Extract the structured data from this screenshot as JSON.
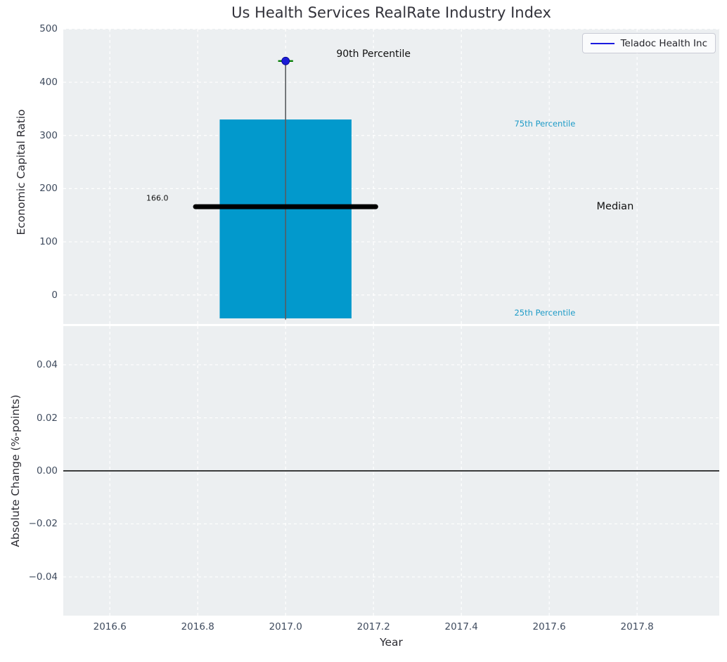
{
  "title": "Us Health Services RealRate Industry Index",
  "legend": {
    "label": "Teladoc Health Inc",
    "line_color": "#1a1ae0"
  },
  "colors": {
    "figure_background": "#ffffff",
    "axes_background": "#eceff1",
    "gridline": "#ffffff",
    "tick_text": "#3f4b5e",
    "bar": "#0299cc",
    "median_line": "#000000",
    "whisker": "#585c60",
    "p90_marker": "#1c1cd6",
    "p90_cap": "#067c06",
    "percentile_label": "#1e9bc7",
    "zero_line": "#000000"
  },
  "chart_data": [
    {
      "type": "box",
      "title": "Us Health Services RealRate Industry Index",
      "ylabel": "Economic Capital Ratio",
      "xlim": [
        2016.494,
        2017.987
      ],
      "ylim": [
        -54.5,
        500.5
      ],
      "grid": true,
      "legend_position": "upper right",
      "xticks": [
        2016.6,
        2016.8,
        2017.0,
        2017.2,
        2017.4,
        2017.6,
        2017.8
      ],
      "xtick_labels": [
        "2016.6",
        "2016.8",
        "2017.0",
        "2017.2",
        "2017.4",
        "2017.6",
        "2017.8"
      ],
      "show_xtick_labels": false,
      "yticks": [
        0,
        100,
        200,
        300,
        400,
        500
      ],
      "ytick_labels": [
        "0",
        "100",
        "200",
        "300",
        "400",
        "500"
      ],
      "series_name": "Teladoc Health Inc",
      "box": {
        "x_center": 2017.0,
        "box_x": [
          2016.85,
          2017.15
        ],
        "median_x": [
          2016.795,
          2017.205
        ],
        "cap_x": [
          2016.983,
          2017.017
        ],
        "p25": -44,
        "median": 166,
        "p75": 330,
        "p90": 440,
        "whisker_low": -46,
        "median_value_label": "166.0"
      },
      "annotations": [
        {
          "text": "90th Percentile",
          "x": 2017.2,
          "y": 453,
          "color": "#111111",
          "size": 14
        },
        {
          "text": "75th Percentile",
          "x": 2017.59,
          "y": 322,
          "color": "#1e9bc7",
          "size": 11.5
        },
        {
          "text": "Median",
          "x": 2017.75,
          "y": 166,
          "color": "#111111",
          "size": 14.5
        },
        {
          "text": "25th Percentile",
          "x": 2017.59,
          "y": -34,
          "color": "#1e9bc7",
          "size": 11.5
        },
        {
          "text": "166.0",
          "x": 2016.708,
          "y": 182,
          "color": "#111111",
          "size": 11
        }
      ]
    },
    {
      "type": "line",
      "ylabel": "Absolute Change (%-points)",
      "xlabel": "Year",
      "xlim": [
        2016.494,
        2017.987
      ],
      "ylim": [
        -0.0546,
        0.0546
      ],
      "grid": true,
      "xticks": [
        2016.6,
        2016.8,
        2017.0,
        2017.2,
        2017.4,
        2017.6,
        2017.8
      ],
      "xtick_labels": [
        "2016.6",
        "2016.8",
        "2017.0",
        "2017.2",
        "2017.4",
        "2017.6",
        "2017.8"
      ],
      "show_xtick_labels": true,
      "yticks": [
        0.04,
        0.02,
        0.0,
        -0.02,
        -0.04
      ],
      "ytick_labels": [
        "0.04",
        "0.02",
        "0.00",
        "−0.02",
        "−0.04"
      ],
      "zero_line": 0.0,
      "series": []
    }
  ]
}
